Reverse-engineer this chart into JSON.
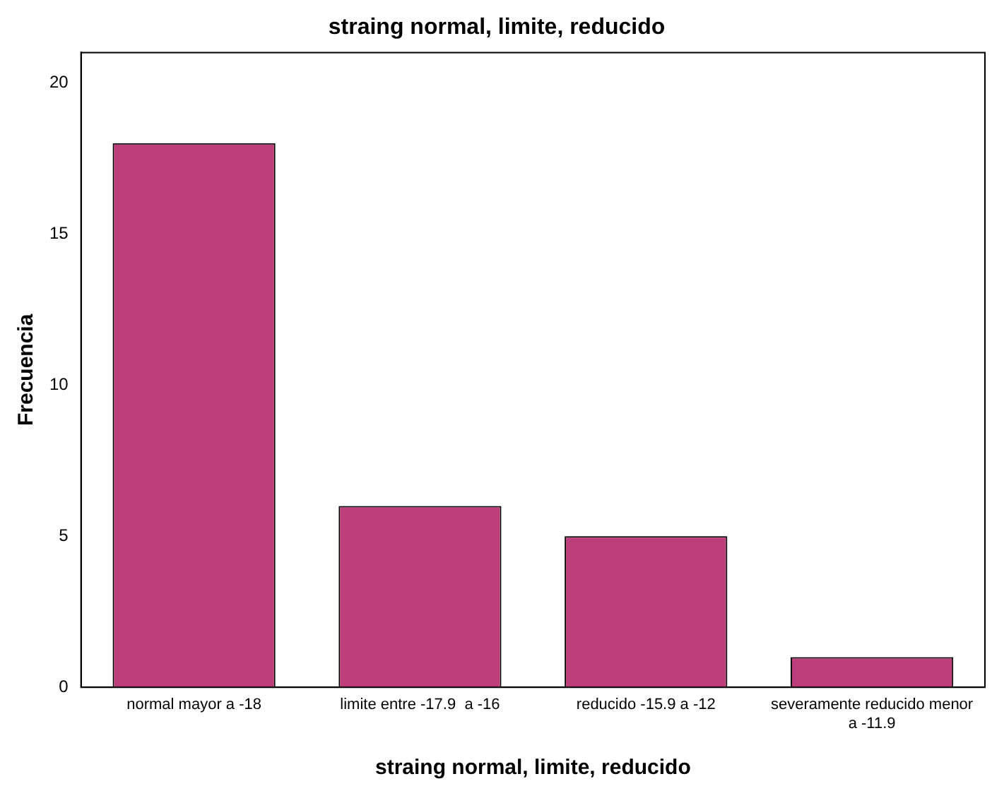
{
  "chart_data": {
    "type": "bar",
    "title": "straing normal, limite, reducido",
    "xlabel": "straing normal, limite, reducido",
    "ylabel": "Frecuencia",
    "categories": [
      "normal mayor a -18",
      "limite entre -17.9  a -16",
      "reducido -15.9 a -12",
      "severamente reducido menor a -11.9"
    ],
    "values": [
      18,
      6,
      5,
      1
    ],
    "color": "#bc3f7b",
    "ylim": [
      0,
      21
    ],
    "yticks": [
      0,
      5,
      10,
      15,
      20
    ],
    "grid": false,
    "legend": false
  }
}
